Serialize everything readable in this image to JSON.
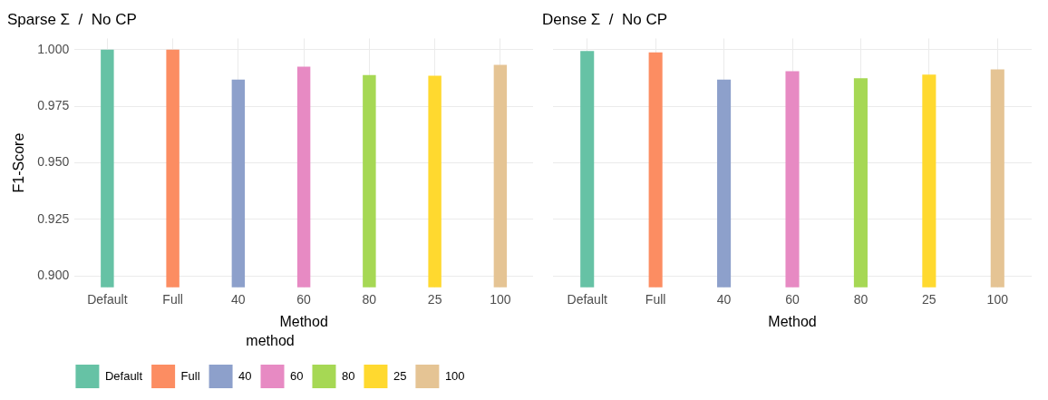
{
  "chart_data": [
    {
      "type": "bar",
      "title": "Sparse Σ  /  No CP",
      "xlabel": "Method",
      "ylabel": "F1-Score",
      "categories": [
        "Default",
        "Full",
        "40",
        "60",
        "80",
        "25",
        "100"
      ],
      "series": [
        {
          "name": "Default",
          "color": "#66c2a5",
          "values": [
            1.0,
            null,
            null,
            null,
            null,
            null,
            null
          ]
        },
        {
          "name": "Full",
          "color": "#fc8d62",
          "values": [
            null,
            1.0,
            null,
            null,
            null,
            null,
            null
          ]
        },
        {
          "name": "40",
          "color": "#8da0cb",
          "values": [
            null,
            null,
            0.9868,
            null,
            null,
            null,
            null
          ]
        },
        {
          "name": "60",
          "color": "#e78ac3",
          "values": [
            null,
            null,
            null,
            0.9925,
            null,
            null,
            null
          ]
        },
        {
          "name": "80",
          "color": "#a6d854",
          "values": [
            null,
            null,
            null,
            null,
            0.9888,
            null,
            null
          ]
        },
        {
          "name": "25",
          "color": "#ffd92f",
          "values": [
            null,
            null,
            null,
            null,
            null,
            0.9885,
            null
          ]
        },
        {
          "name": "100",
          "color": "#e5c494",
          "values": [
            null,
            null,
            null,
            null,
            null,
            null,
            0.9933
          ]
        }
      ],
      "ylim": [
        0.895,
        1.005
      ],
      "yticks": [
        {
          "value": 0.9,
          "label": "0.900"
        },
        {
          "value": 0.925,
          "label": "0.925"
        },
        {
          "value": 0.95,
          "label": "0.950"
        },
        {
          "value": 0.975,
          "label": "0.975"
        },
        {
          "value": 1.0,
          "label": "1.000"
        }
      ],
      "grid": true,
      "legend": "bottom",
      "legend_title": "method"
    },
    {
      "type": "bar",
      "title": "Dense Σ  /  No CP",
      "xlabel": "Method",
      "categories": [
        "Default",
        "Full",
        "40",
        "60",
        "80",
        "25",
        "100"
      ],
      "series": [
        {
          "color": "#66c2a5",
          "values": [
            0.9994,
            null,
            null,
            null,
            null,
            null,
            null
          ]
        },
        {
          "color": "#fc8d62",
          "values": [
            null,
            0.9988,
            null,
            null,
            null,
            null,
            null
          ]
        },
        {
          "color": "#8da0cb",
          "values": [
            null,
            null,
            0.9868,
            null,
            null,
            null,
            null
          ]
        },
        {
          "color": "#e78ac3",
          "values": [
            null,
            null,
            null,
            0.9905,
            null,
            null,
            null
          ]
        },
        {
          "color": "#a6d854",
          "values": [
            null,
            null,
            null,
            null,
            0.9874,
            null,
            null
          ]
        },
        {
          "color": "#ffd92f",
          "values": [
            null,
            null,
            null,
            null,
            null,
            0.989,
            null
          ]
        },
        {
          "color": "#e5c494",
          "values": [
            null,
            null,
            null,
            null,
            null,
            null,
            0.9913
          ]
        }
      ],
      "ylim": [
        0.895,
        1.005
      ],
      "yticks": [
        0.9,
        0.925,
        0.95,
        0.975,
        1.0
      ],
      "grid": true,
      "tick_labels": "x"
    }
  ]
}
